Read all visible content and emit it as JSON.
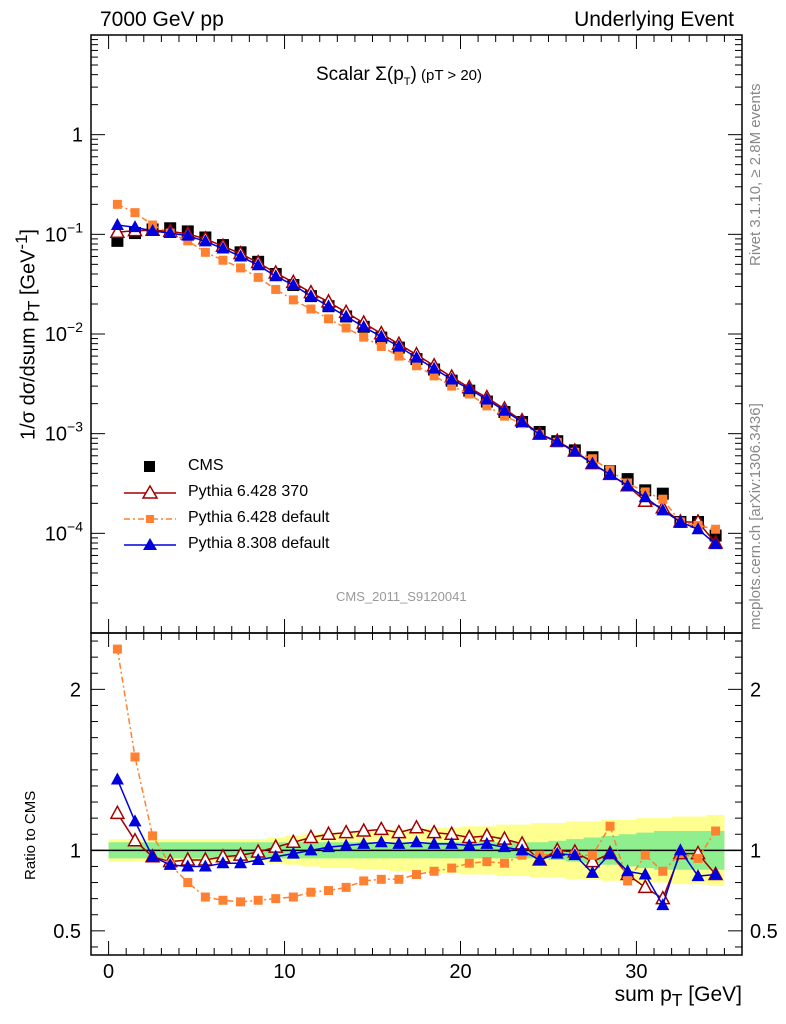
{
  "header": {
    "left": "7000 GeV pp",
    "right": "Underlying Event",
    "rivet": "Rivet 3.1.10, ≥ 2.8M events",
    "mcplots": "mcplots.cern.ch [arXiv:1306.3436]"
  },
  "watermark": "CMS_2011_S9120041",
  "title": {
    "main": "Scalar Σ(p",
    "sub": "T",
    "close": ")",
    "extra": " (pT > 20)"
  },
  "axes": {
    "ylabel_main": "1/σ dσ/dsum p",
    "ylabel_main_sub": "T",
    "ylabel_main_unit": " [GeV",
    "ylabel_main_sup": "-1",
    "ylabel_main_close": "]",
    "ylabel_ratio": "Ratio to CMS",
    "xlabel": "sum p",
    "xlabel_sub": "T",
    "xlabel_unit": " [GeV]"
  },
  "legend": [
    {
      "label": "CMS"
    },
    {
      "label": "Pythia 6.428 370"
    },
    {
      "label": "Pythia 6.428 default"
    },
    {
      "label": "Pythia 8.308 default"
    }
  ],
  "colors": {
    "cms": "#000000",
    "p6_370": "#a00000",
    "p6_default": "#ff8030",
    "p8": "#0000dd",
    "band_inner": "#8fef8f",
    "band_outer": "#ffff90"
  },
  "chart_data": [
    {
      "type": "scatter",
      "panel": "main",
      "log_y": true,
      "x": [
        0.5,
        1.5,
        2.5,
        3.5,
        4.5,
        5.5,
        6.5,
        7.5,
        8.5,
        9.5,
        10.5,
        11.5,
        12.5,
        13.5,
        14.5,
        15.5,
        16.5,
        17.5,
        18.5,
        19.5,
        20.5,
        21.5,
        22.5,
        23.5,
        24.5,
        25.5,
        26.5,
        27.5,
        28.5,
        29.5,
        30.5,
        31.5,
        32.5,
        33.5,
        34.5
      ],
      "xlim": [
        -1,
        36
      ],
      "ylim": [
        1e-05,
        10
      ],
      "yticks": [
        "10^-4",
        "10^-3",
        "10^-2",
        "10^-1",
        "1"
      ],
      "xticks": [
        0,
        10,
        20,
        30
      ],
      "series": [
        {
          "name": "CMS",
          "values": [
            0.086,
            0.103,
            0.112,
            0.115,
            0.107,
            0.093,
            0.078,
            0.066,
            0.053,
            0.04,
            0.031,
            0.024,
            0.019,
            0.015,
            0.0118,
            0.0092,
            0.0073,
            0.0056,
            0.0044,
            0.0034,
            0.0027,
            0.0021,
            0.00165,
            0.00131,
            0.00104,
            0.00084,
            0.00068,
            0.00058,
            0.00042,
            0.00035,
            0.00027,
            0.00025,
            0.00013,
            0.00013,
            9.5e-05
          ]
        },
        {
          "name": "Pythia 6.428 370",
          "values": [
            0.105,
            0.109,
            0.11,
            0.107,
            0.101,
            0.09,
            0.076,
            0.064,
            0.052,
            0.041,
            0.033,
            0.026,
            0.021,
            0.0165,
            0.0129,
            0.0101,
            0.0079,
            0.0062,
            0.0048,
            0.0037,
            0.0029,
            0.0023,
            0.00177,
            0.00135,
            0.00099,
            0.00084,
            0.00067,
            0.0005,
            0.00039,
            0.0003,
            0.00021,
            0.00018,
            0.00013,
            0.00013,
            8e-05
          ]
        },
        {
          "name": "Pythia 6.428 default",
          "values": [
            0.2,
            0.165,
            0.124,
            0.103,
            0.086,
            0.066,
            0.055,
            0.046,
            0.037,
            0.028,
            0.022,
            0.0178,
            0.0142,
            0.0115,
            0.0093,
            0.0075,
            0.006,
            0.0048,
            0.0038,
            0.003,
            0.0025,
            0.0019,
            0.0015,
            0.00126,
            0.00098,
            0.00082,
            0.00065,
            0.00056,
            0.00043,
            0.00032,
            0.00026,
            0.00022,
            0.00013,
            0.00012,
            0.00011
          ]
        },
        {
          "name": "Pythia 8.308 default",
          "values": [
            0.124,
            0.118,
            0.108,
            0.103,
            0.097,
            0.085,
            0.072,
            0.06,
            0.049,
            0.038,
            0.031,
            0.024,
            0.019,
            0.015,
            0.0118,
            0.0094,
            0.0075,
            0.0058,
            0.0045,
            0.0035,
            0.0028,
            0.0022,
            0.0017,
            0.00131,
            0.00098,
            0.00083,
            0.00066,
            0.0005,
            0.00039,
            0.0003,
            0.00023,
            0.00017,
            0.00013,
            0.00011,
            7.8e-05
          ]
        }
      ]
    },
    {
      "type": "line",
      "panel": "ratio",
      "x": [
        0.5,
        1.5,
        2.5,
        3.5,
        4.5,
        5.5,
        6.5,
        7.5,
        8.5,
        9.5,
        10.5,
        11.5,
        12.5,
        13.5,
        14.5,
        15.5,
        16.5,
        17.5,
        18.5,
        19.5,
        20.5,
        21.5,
        22.5,
        23.5,
        24.5,
        25.5,
        26.5,
        27.5,
        28.5,
        29.5,
        30.5,
        31.5,
        32.5,
        33.5,
        34.5
      ],
      "xlim": [
        -1,
        36
      ],
      "ylim": [
        0.35,
        2.35
      ],
      "yticks": [
        0.5,
        1,
        2
      ],
      "reference": 1,
      "series": [
        {
          "name": "Pythia 6.428 370",
          "values": [
            1.23,
            1.06,
            0.96,
            0.93,
            0.94,
            0.94,
            0.96,
            0.97,
            0.99,
            1.02,
            1.05,
            1.08,
            1.1,
            1.11,
            1.12,
            1.13,
            1.11,
            1.14,
            1.11,
            1.1,
            1.08,
            1.09,
            1.07,
            1.04,
            0.94,
            1.0,
            0.99,
            0.93,
            0.98,
            0.85,
            0.77,
            0.7,
            0.98,
            0.98,
            0.85
          ]
        },
        {
          "name": "Pythia 6.428 default",
          "values": [
            2.25,
            1.58,
            1.09,
            0.91,
            0.8,
            0.71,
            0.69,
            0.68,
            0.69,
            0.7,
            0.71,
            0.74,
            0.75,
            0.77,
            0.81,
            0.82,
            0.82,
            0.85,
            0.87,
            0.89,
            0.92,
            0.93,
            0.92,
            0.97,
            0.97,
            0.98,
            0.97,
            0.97,
            1.15,
            0.81,
            0.97,
            0.87,
            0.98,
            0.95,
            1.12
          ]
        },
        {
          "name": "Pythia 8.308 default",
          "values": [
            1.44,
            1.18,
            0.96,
            0.91,
            0.9,
            0.9,
            0.92,
            0.92,
            0.94,
            0.96,
            0.98,
            1.0,
            1.02,
            1.03,
            1.04,
            1.05,
            1.04,
            1.05,
            1.04,
            1.04,
            1.03,
            1.04,
            1.02,
            1.0,
            0.94,
            0.98,
            0.97,
            0.86,
            0.98,
            0.87,
            0.85,
            0.66,
            1.0,
            0.84,
            0.85
          ]
        }
      ],
      "band_inner_halfwidth": [
        0.05,
        0.05,
        0.05,
        0.05,
        0.05,
        0.05,
        0.05,
        0.05,
        0.05,
        0.05,
        0.05,
        0.05,
        0.05,
        0.05,
        0.05,
        0.05,
        0.05,
        0.05,
        0.05,
        0.05,
        0.05,
        0.05,
        0.05,
        0.05,
        0.05,
        0.06,
        0.07,
        0.08,
        0.09,
        0.1,
        0.11,
        0.12,
        0.12,
        0.12,
        0.12
      ],
      "band_outer_halfwidth": [
        0.07,
        0.07,
        0.07,
        0.07,
        0.07,
        0.07,
        0.07,
        0.07,
        0.07,
        0.08,
        0.09,
        0.1,
        0.11,
        0.11,
        0.12,
        0.12,
        0.13,
        0.13,
        0.14,
        0.14,
        0.15,
        0.15,
        0.16,
        0.16,
        0.17,
        0.17,
        0.18,
        0.18,
        0.19,
        0.19,
        0.2,
        0.2,
        0.21,
        0.21,
        0.22
      ]
    }
  ]
}
